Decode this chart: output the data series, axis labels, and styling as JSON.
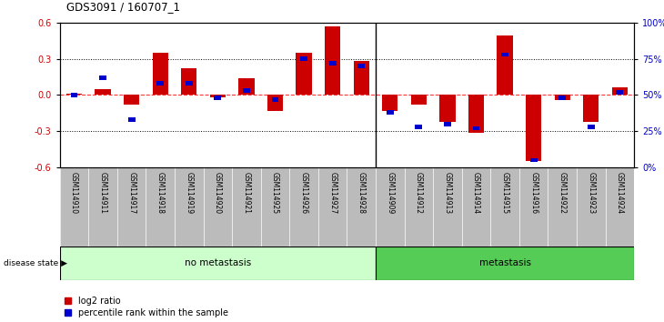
{
  "title": "GDS3091 / 160707_1",
  "samples": [
    "GSM114910",
    "GSM114911",
    "GSM114917",
    "GSM114918",
    "GSM114919",
    "GSM114920",
    "GSM114921",
    "GSM114925",
    "GSM114926",
    "GSM114927",
    "GSM114928",
    "GSM114909",
    "GSM114912",
    "GSM114913",
    "GSM114914",
    "GSM114915",
    "GSM114916",
    "GSM114922",
    "GSM114923",
    "GSM114924"
  ],
  "log2_ratio": [
    0.01,
    0.05,
    -0.08,
    0.35,
    0.22,
    -0.02,
    0.14,
    -0.13,
    0.35,
    0.57,
    0.28,
    -0.13,
    -0.08,
    -0.22,
    -0.31,
    0.49,
    -0.55,
    -0.04,
    -0.22,
    0.06
  ],
  "percentile_rank": [
    50,
    62,
    33,
    58,
    58,
    48,
    53,
    47,
    75,
    72,
    70,
    38,
    28,
    30,
    27,
    78,
    5,
    48,
    28,
    52
  ],
  "no_metastasis_count": 11,
  "metastasis_count": 9,
  "red_color": "#cc0000",
  "blue_color": "#0000cc",
  "no_metastasis_color": "#ccffcc",
  "metastasis_color": "#55cc55",
  "group_label_no": "no metastasis",
  "group_label_meta": "metastasis",
  "disease_state_label": "disease state",
  "ylim_left": [
    -0.6,
    0.6
  ],
  "ylim_right": [
    0,
    100
  ],
  "yticks_left": [
    -0.6,
    -0.3,
    0.0,
    0.3,
    0.6
  ],
  "yticks_right": [
    0,
    25,
    50,
    75,
    100
  ],
  "ytick_labels_right": [
    "0%",
    "25%",
    "50%",
    "75%",
    "100%"
  ],
  "legend_log2": "log2 ratio",
  "legend_pct": "percentile rank within the sample"
}
